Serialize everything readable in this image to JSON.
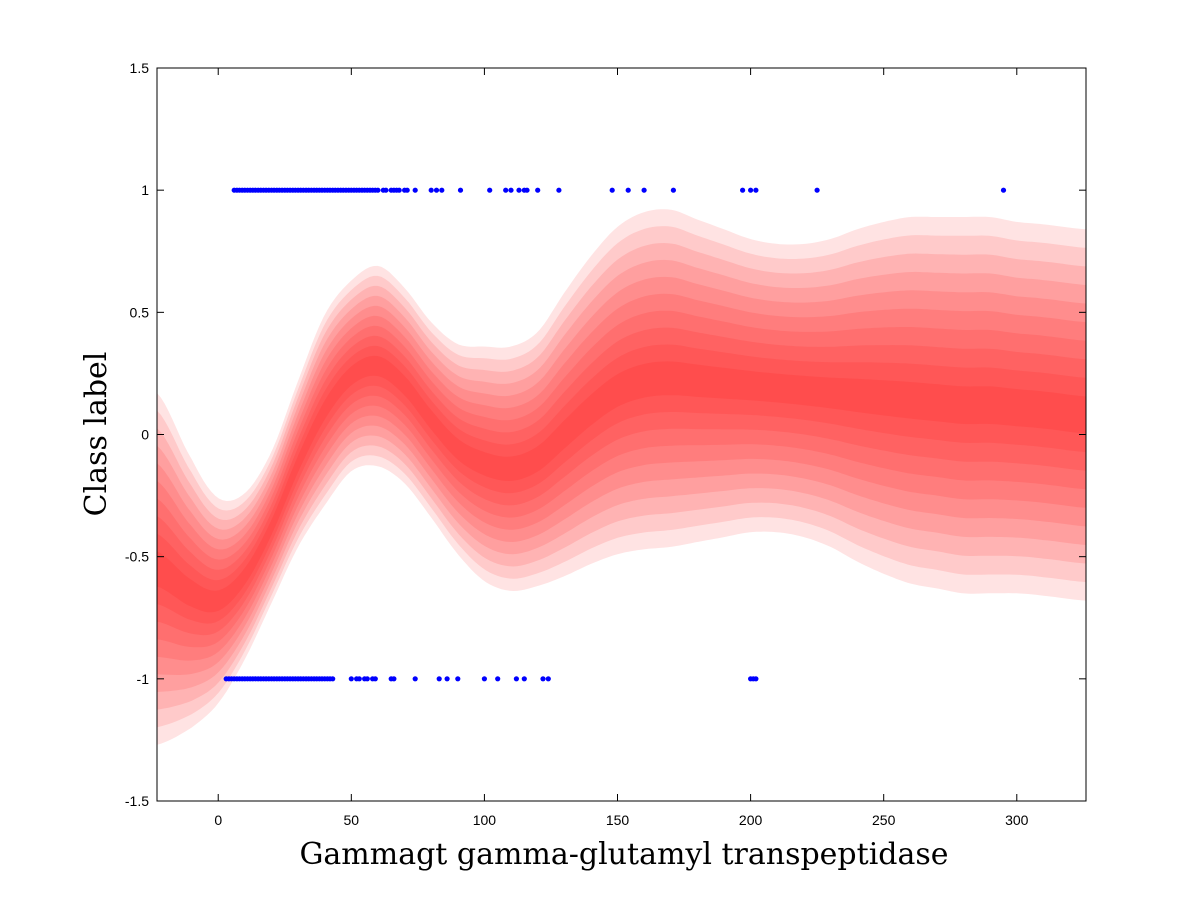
{
  "chart_data": {
    "type": "area",
    "xlabel": "Gammagt gamma-glutamyl transpeptidase",
    "ylabel": "Class label",
    "xlim": [
      -23,
      326
    ],
    "ylim": [
      -1.5,
      1.5
    ],
    "xticks": [
      0,
      50,
      100,
      150,
      200,
      250,
      300
    ],
    "yticks": [
      -1.5,
      -1,
      -0.5,
      0,
      0.5,
      1,
      1.5
    ],
    "x_tick_labels": [
      "0",
      "50",
      "100",
      "150",
      "200",
      "250",
      "300"
    ],
    "y_tick_labels": [
      "-1.5",
      "-1",
      "-0.5",
      "0",
      "0.5",
      "1",
      "1.5"
    ],
    "grid": false,
    "legend": "none",
    "band_color": "#ff0000",
    "point_color": "#0000ff",
    "band_levels": 10,
    "mean": {
      "x": [
        -23,
        -10,
        0,
        10,
        20,
        30,
        40,
        50,
        60,
        70,
        80,
        90,
        100,
        110,
        120,
        130,
        140,
        150,
        160,
        170,
        180,
        190,
        200,
        210,
        220,
        230,
        240,
        250,
        260,
        270,
        280,
        290,
        300,
        310,
        326
      ],
      "y": [
        -0.55,
        -0.65,
        -0.68,
        -0.58,
        -0.38,
        -0.12,
        0.1,
        0.24,
        0.28,
        0.2,
        0.06,
        -0.06,
        -0.12,
        -0.14,
        -0.1,
        0.0,
        0.1,
        0.18,
        0.22,
        0.23,
        0.22,
        0.21,
        0.2,
        0.19,
        0.18,
        0.17,
        0.16,
        0.15,
        0.14,
        0.13,
        0.12,
        0.12,
        0.11,
        0.1,
        0.08
      ]
    },
    "outer_half_width": [
      0.72,
      0.55,
      0.42,
      0.34,
      0.31,
      0.34,
      0.39,
      0.39,
      0.41,
      0.4,
      0.4,
      0.43,
      0.48,
      0.5,
      0.52,
      0.58,
      0.63,
      0.67,
      0.69,
      0.69,
      0.66,
      0.63,
      0.6,
      0.59,
      0.6,
      0.63,
      0.68,
      0.72,
      0.75,
      0.76,
      0.77,
      0.77,
      0.76,
      0.76,
      0.76
    ],
    "series": [
      {
        "name": "",
        "y": 1,
        "x": [
          6,
          7,
          8,
          9,
          10,
          11,
          12,
          13,
          14,
          15,
          16,
          17,
          18,
          19,
          20,
          21,
          22,
          23,
          24,
          25,
          26,
          27,
          28,
          29,
          30,
          31,
          32,
          33,
          34,
          35,
          36,
          37,
          38,
          39,
          40,
          41,
          42,
          43,
          44,
          45,
          46,
          47,
          48,
          49,
          50,
          51,
          52,
          53,
          54,
          55,
          56,
          57,
          58,
          59,
          60,
          62,
          63,
          65,
          66,
          67,
          68,
          70,
          71,
          74,
          80,
          82,
          84,
          91,
          102,
          108,
          110,
          113,
          115,
          116,
          120,
          128,
          148,
          154,
          160,
          171,
          197,
          200,
          202,
          225,
          295
        ]
      },
      {
        "name": "",
        "y": -1,
        "x": [
          3,
          4,
          5,
          6,
          7,
          8,
          9,
          10,
          11,
          12,
          13,
          14,
          15,
          16,
          17,
          18,
          19,
          20,
          21,
          22,
          23,
          24,
          25,
          26,
          27,
          28,
          29,
          30,
          31,
          32,
          33,
          34,
          35,
          36,
          37,
          38,
          39,
          40,
          41,
          42,
          43,
          50,
          52,
          53,
          55,
          56,
          58,
          59,
          65,
          66,
          74,
          83,
          86,
          90,
          100,
          105,
          112,
          115,
          122,
          124,
          200,
          201,
          202
        ]
      }
    ]
  }
}
